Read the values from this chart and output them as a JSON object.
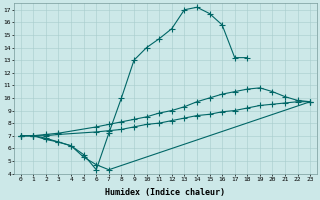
{
  "xlabel": "Humidex (Indice chaleur)",
  "bg_color": "#cce8e8",
  "line_color": "#006666",
  "xlim": [
    -0.5,
    23.5
  ],
  "ylim": [
    4,
    17.5
  ],
  "xticks": [
    0,
    1,
    2,
    3,
    4,
    5,
    6,
    7,
    8,
    9,
    10,
    11,
    12,
    13,
    14,
    15,
    16,
    17,
    18,
    19,
    20,
    21,
    22,
    23
  ],
  "yticks": [
    4,
    5,
    6,
    7,
    8,
    9,
    10,
    11,
    12,
    13,
    14,
    15,
    16,
    17
  ],
  "line1_x": [
    0,
    1,
    2,
    3,
    4,
    5,
    6,
    7,
    8,
    9,
    10,
    11,
    12,
    13,
    14,
    15,
    16,
    17,
    18
  ],
  "line1_y": [
    7.0,
    7.0,
    6.7,
    6.5,
    6.2,
    5.5,
    4.3,
    7.2,
    10.0,
    13.0,
    14.0,
    14.7,
    15.5,
    17.0,
    17.2,
    16.7,
    15.8,
    13.2,
    13.2
  ],
  "line2_x": [
    0,
    1,
    2,
    3,
    4,
    5,
    6,
    7,
    23
  ],
  "line2_y": [
    7.0,
    7.0,
    6.8,
    6.5,
    6.2,
    5.3,
    4.7,
    4.3,
    9.7
  ],
  "line3_x": [
    0,
    1,
    2,
    3,
    6,
    7,
    8,
    9,
    10,
    11,
    12,
    13,
    14,
    15,
    16,
    17,
    18,
    19,
    20,
    21,
    22,
    23
  ],
  "line3_y": [
    7.0,
    7.0,
    7.1,
    7.2,
    7.7,
    7.9,
    8.1,
    8.3,
    8.5,
    8.8,
    9.0,
    9.3,
    9.7,
    10.0,
    10.3,
    10.5,
    10.7,
    10.8,
    10.5,
    10.1,
    9.8,
    9.7
  ],
  "line4_x": [
    0,
    1,
    2,
    3,
    6,
    7,
    8,
    9,
    10,
    11,
    12,
    13,
    14,
    15,
    16,
    17,
    18,
    19,
    20,
    21,
    22,
    23
  ],
  "line4_y": [
    7.0,
    7.0,
    7.0,
    7.1,
    7.3,
    7.4,
    7.5,
    7.7,
    7.9,
    8.0,
    8.2,
    8.4,
    8.6,
    8.7,
    8.9,
    9.0,
    9.2,
    9.4,
    9.5,
    9.6,
    9.7,
    9.7
  ]
}
